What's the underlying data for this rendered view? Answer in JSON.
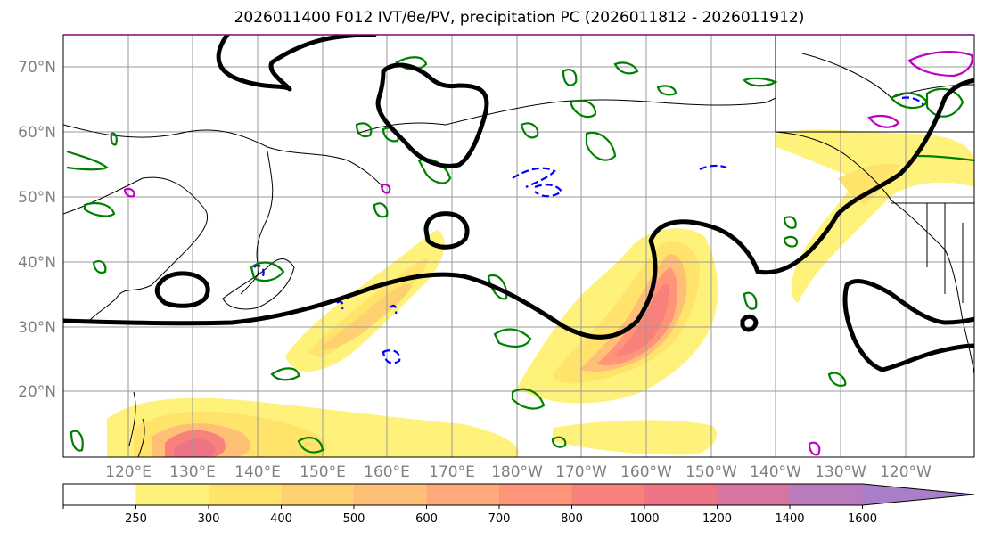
{
  "title": "2026011400 F012 IVT/θe/PV, precipitation PC (2026011812 - 2026011912)",
  "map": {
    "lat_labels": [
      "70°N",
      "60°N",
      "50°N",
      "40°N",
      "30°N",
      "20°N"
    ],
    "lon_labels": [
      "120°E",
      "130°E",
      "140°E",
      "150°E",
      "160°E",
      "170°E",
      "180°W",
      "170°W",
      "160°W",
      "150°W",
      "140°W",
      "130°W",
      "120°W"
    ],
    "colors": {
      "theta_e_contour": "#000000",
      "pv_contour_green": "#008000",
      "pv_contour_blue": "#0000ff",
      "pv_contour_magenta": "#c000c0",
      "coastline": "#000000",
      "grid": "#9a9a9a",
      "frame": "#800080"
    }
  },
  "colorbar": {
    "levels": [
      "250",
      "300",
      "400",
      "500",
      "600",
      "700",
      "800",
      "1000",
      "1200",
      "1400",
      "1600"
    ],
    "colors": [
      "#ffffff",
      "#fff27a",
      "#ffe36a",
      "#ffd070",
      "#ffbf77",
      "#ffa87a",
      "#ff9478",
      "#f8817b",
      "#ec7484",
      "#d675a0",
      "#b97bbd",
      "#a87fc8"
    ],
    "extend": "max"
  }
}
